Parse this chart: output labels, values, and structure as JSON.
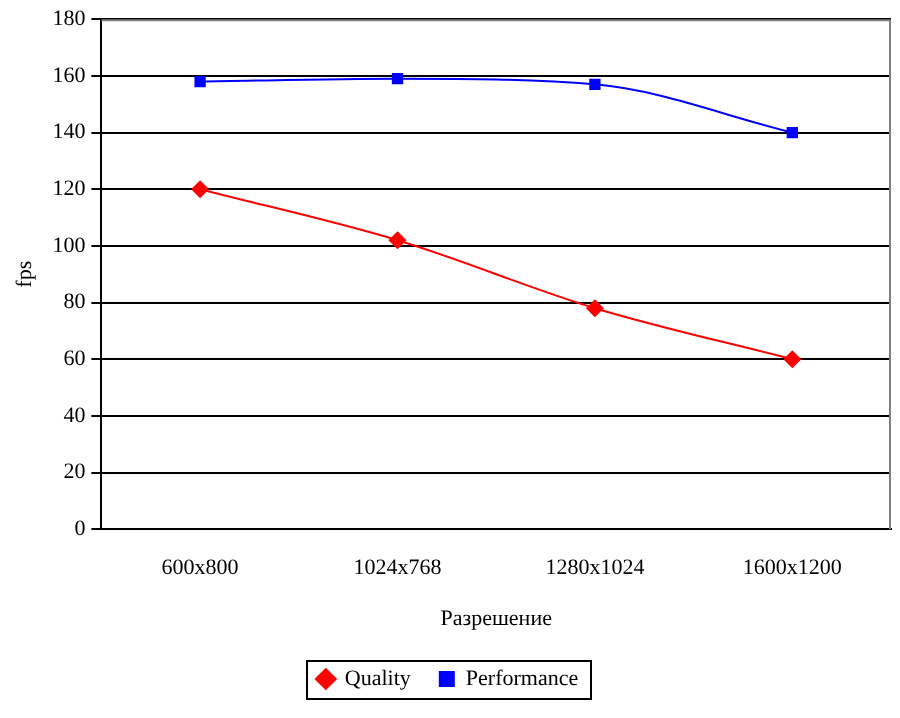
{
  "chart_data": {
    "type": "line",
    "xlabel": "Разрешение",
    "ylabel": "fps",
    "categories": [
      "600x800",
      "1024x768",
      "1280x1024",
      "1600x1200"
    ],
    "series": [
      {
        "name": "Quality",
        "color": "#ff0000",
        "marker": "diamond",
        "values": [
          120,
          102,
          78,
          60
        ]
      },
      {
        "name": "Performance",
        "color": "#0000ff",
        "marker": "square",
        "values": [
          158,
          159,
          157,
          140
        ]
      }
    ],
    "ylim": [
      0,
      180
    ],
    "yticks": [
      0,
      20,
      40,
      60,
      80,
      100,
      120,
      140,
      160,
      180
    ],
    "grid": "y",
    "legend": "bottom"
  }
}
